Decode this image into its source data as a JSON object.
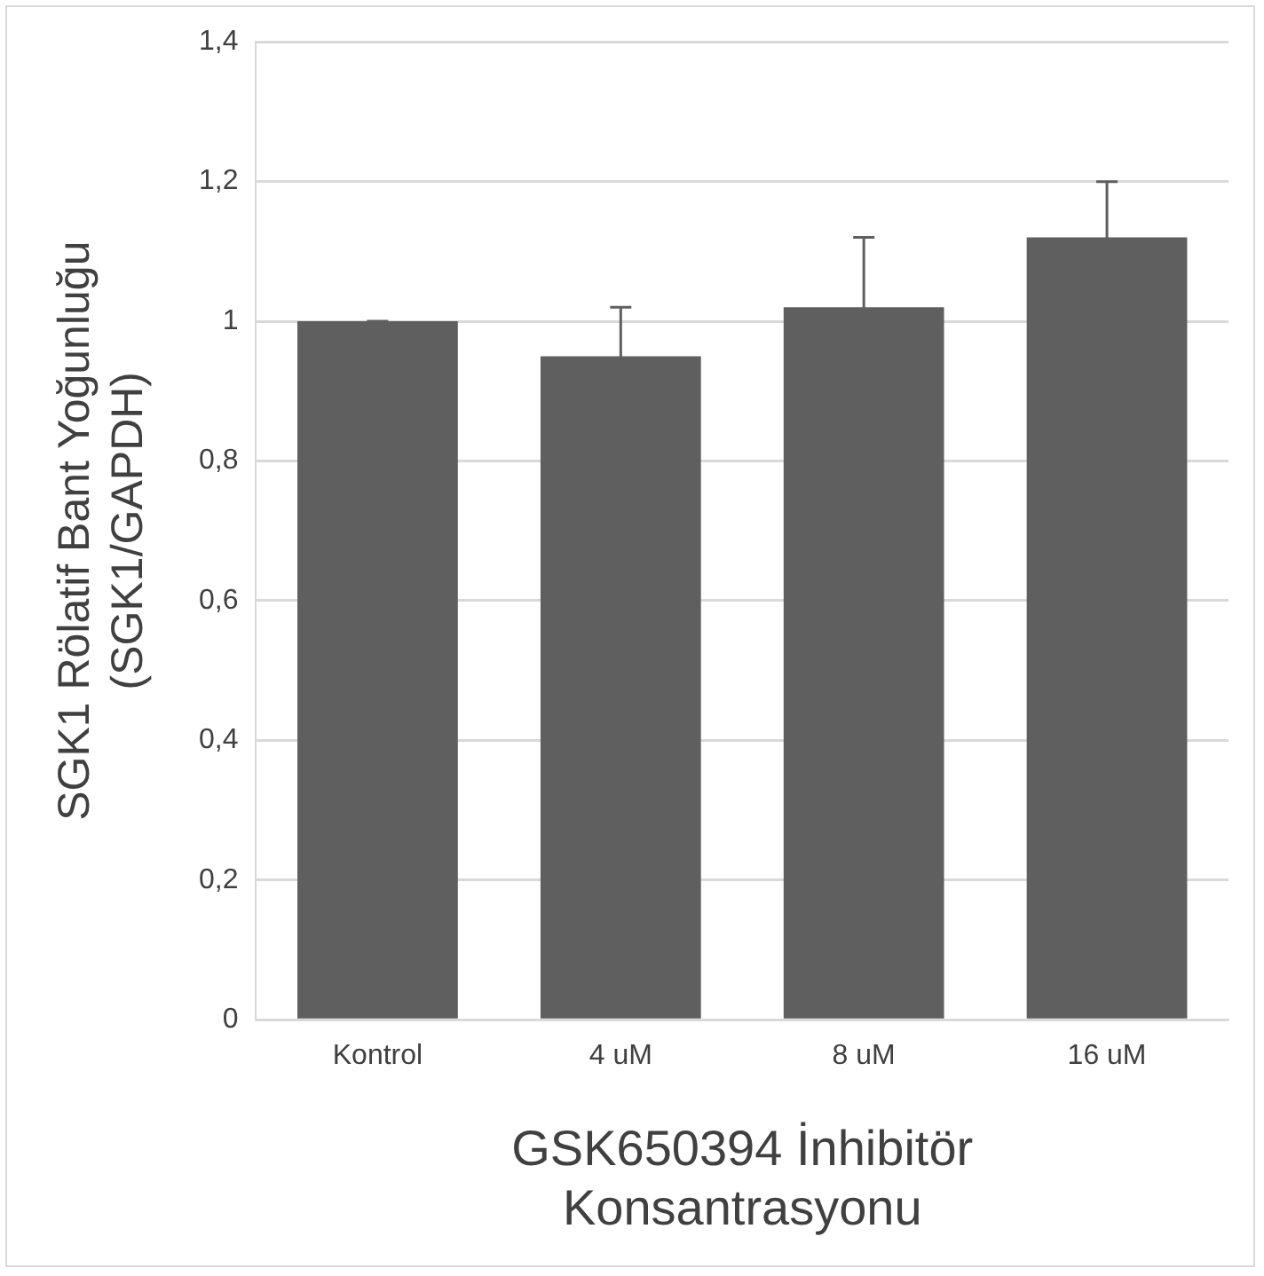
{
  "chart_data": {
    "type": "bar",
    "xlabel": "GSK650394 İnhibitör Konsantrasyonu",
    "ylabel": "SGK1 Rölatif Bant Yoğunluğu (SGK1/GAPDH)",
    "categories": [
      "Kontrol",
      "4 uM",
      "8 uM",
      "16 uM"
    ],
    "values": [
      1.0,
      0.95,
      1.02,
      1.12
    ],
    "errors": [
      0,
      0.07,
      0.1,
      0.08
    ],
    "color": "#5f5f5f",
    "ylim": [
      0,
      1.4
    ],
    "yticks": [
      {
        "value": 0,
        "label": "0"
      },
      {
        "value": 0.2,
        "label": "0,2"
      },
      {
        "value": 0.4,
        "label": "0,4"
      },
      {
        "value": 0.6,
        "label": "0,6"
      },
      {
        "value": 0.8,
        "label": "0,8"
      },
      {
        "value": 1,
        "label": "1"
      },
      {
        "value": 1.2,
        "label": "1,2"
      },
      {
        "value": 1.4,
        "label": "1,4"
      }
    ],
    "grid": "y"
  }
}
